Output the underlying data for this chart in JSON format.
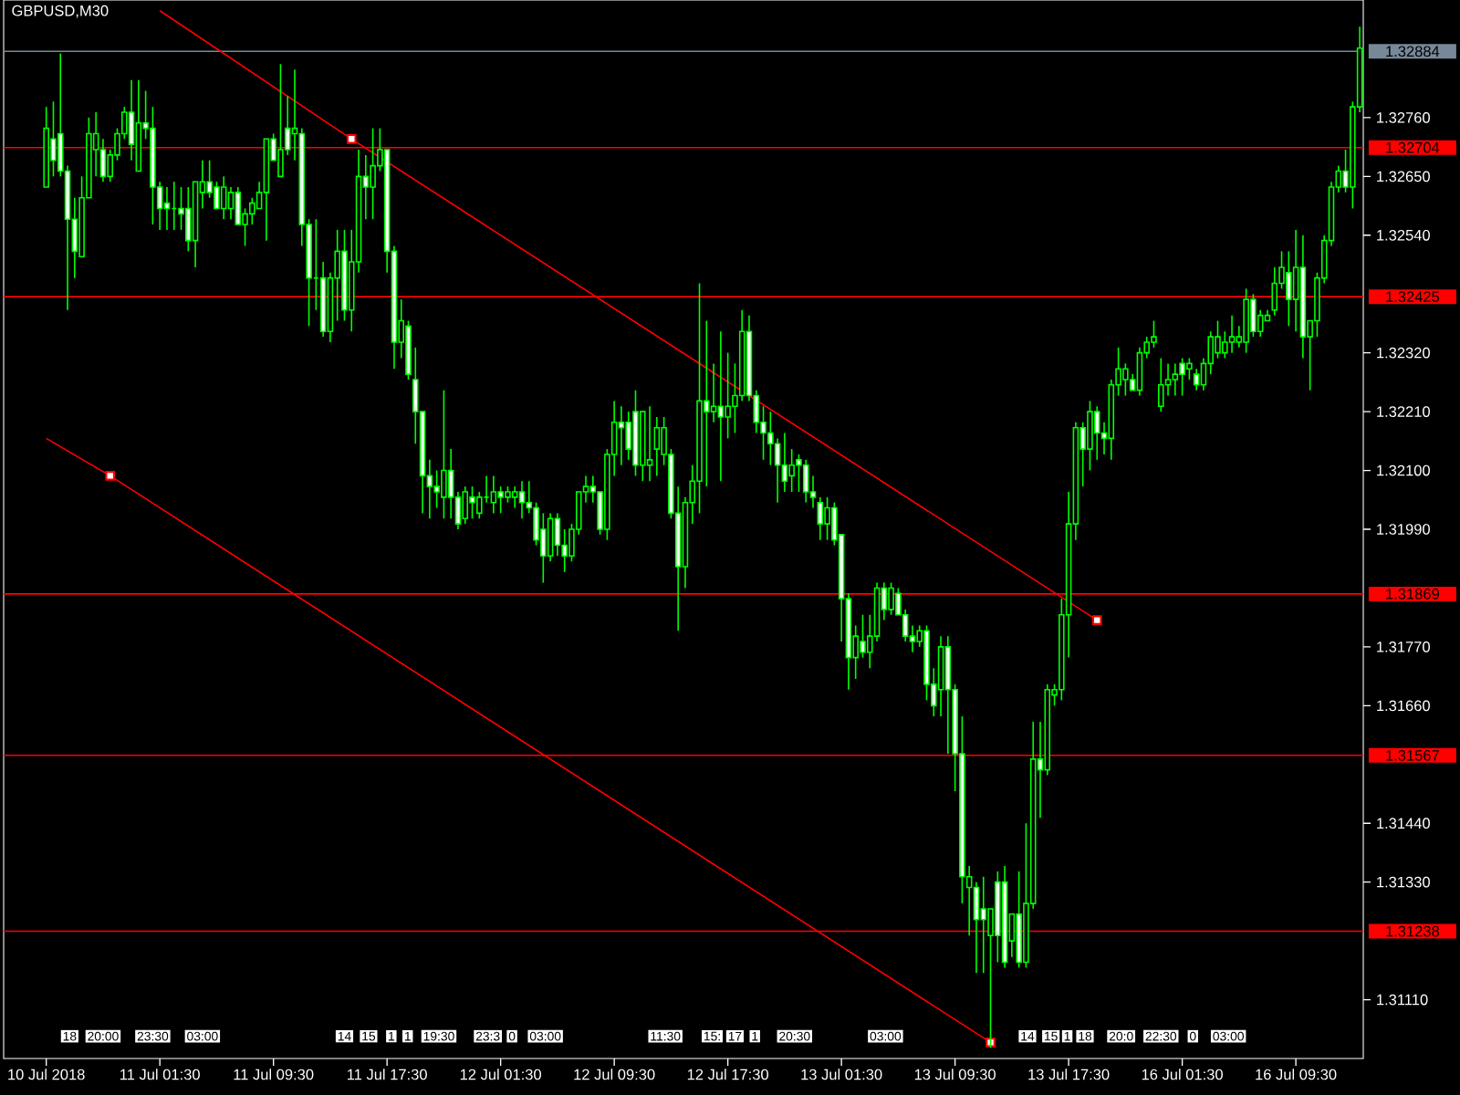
{
  "chart_data": {
    "type": "candlestick",
    "title": "GBPUSD,M30",
    "color": "#00ff00",
    "categories": [
      "10 Jul 2018",
      null,
      null,
      null,
      null,
      null,
      null,
      null,
      null,
      null,
      null,
      null,
      null,
      null,
      null,
      null,
      "11 Jul 01:30",
      null,
      null,
      null,
      null,
      null,
      null,
      null,
      null,
      null,
      null,
      null,
      null,
      null,
      null,
      null,
      "11 Jul 09:30",
      null,
      null,
      null,
      null,
      null,
      null,
      null,
      null,
      null,
      null,
      null,
      null,
      null,
      null,
      null,
      "11 Jul 17:30",
      null,
      null,
      null,
      null,
      null,
      null,
      null,
      null,
      null,
      null,
      null,
      null,
      null,
      null,
      null,
      "12 Jul 01:30",
      null,
      null,
      null,
      null,
      null,
      null,
      null,
      null,
      null,
      null,
      null,
      null,
      null,
      null,
      null,
      "12 Jul 09:30",
      null,
      null,
      null,
      null,
      null,
      null,
      null,
      null,
      null,
      null,
      null,
      null,
      null,
      null,
      null,
      "12 Jul 17:30",
      null,
      null,
      null,
      null,
      null,
      null,
      null,
      null,
      null,
      null,
      null,
      null,
      null,
      null,
      null,
      "13 Jul 01:30",
      null,
      null,
      null,
      null,
      null,
      null,
      null,
      null,
      null,
      null,
      null,
      null,
      null,
      null,
      null,
      "13 Jul 09:30",
      null,
      null,
      null,
      null,
      null,
      null,
      null,
      null,
      null,
      null,
      null,
      null,
      null,
      null,
      null,
      "13 Jul 17:30",
      null,
      null,
      null,
      null,
      null,
      null,
      null,
      null,
      null,
      null,
      null,
      null,
      null,
      null,
      null,
      "16 Jul 01:30",
      null,
      null,
      null,
      null,
      null,
      null,
      null,
      null,
      null,
      null,
      null,
      null,
      null,
      null,
      null,
      "16 Jul 09:30",
      null,
      null,
      null,
      null,
      null,
      null,
      null,
      null,
      null
    ],
    "ohlc": [
      [
        1.3263,
        1.3278,
        1.3263,
        1.3274
      ],
      [
        1.3272,
        1.3279,
        1.3265,
        1.3268
      ],
      [
        1.3273,
        1.3288,
        1.3265,
        1.3266
      ],
      [
        1.3266,
        1.3267,
        1.324,
        1.3257
      ],
      [
        1.3257,
        1.3261,
        1.3246,
        1.3251
      ],
      [
        1.325,
        1.3265,
        1.325,
        1.3261
      ],
      [
        1.3261,
        1.3276,
        1.3261,
        1.3273
      ],
      [
        1.327,
        1.3277,
        1.3265,
        1.3273
      ],
      [
        1.327,
        1.3272,
        1.3264,
        1.3265
      ],
      [
        1.3265,
        1.327,
        1.3264,
        1.3269
      ],
      [
        1.3269,
        1.3274,
        1.3268,
        1.3273
      ],
      [
        1.3273,
        1.3278,
        1.3272,
        1.3277
      ],
      [
        1.3277,
        1.3283,
        1.3268,
        1.3271
      ],
      [
        1.3266,
        1.3283,
        1.3266,
        1.3275
      ],
      [
        1.3275,
        1.3281,
        1.3272,
        1.3274
      ],
      [
        1.3274,
        1.3278,
        1.3256,
        1.3263
      ],
      [
        1.3263,
        1.3264,
        1.3255,
        1.3259
      ],
      [
        1.326,
        1.3263,
        1.3255,
        1.3259
      ],
      [
        1.3259,
        1.3264,
        1.3255,
        1.3259
      ],
      [
        1.3259,
        1.3263,
        1.3255,
        1.3258
      ],
      [
        1.3259,
        1.3263,
        1.3251,
        1.3253
      ],
      [
        1.3253,
        1.3264,
        1.3248,
        1.3264
      ],
      [
        1.3262,
        1.3268,
        1.3259,
        1.3264
      ],
      [
        1.3264,
        1.3268,
        1.3261,
        1.3262
      ],
      [
        1.3263,
        1.3264,
        1.3259,
        1.3259
      ],
      [
        1.3259,
        1.3265,
        1.3257,
        1.3263
      ],
      [
        1.3259,
        1.3263,
        1.3257,
        1.3262
      ],
      [
        1.3262,
        1.3263,
        1.3256,
        1.3256
      ],
      [
        1.3256,
        1.3259,
        1.3252,
        1.3258
      ],
      [
        1.3258,
        1.3261,
        1.3256,
        1.326
      ],
      [
        1.3259,
        1.3264,
        1.3259,
        1.3262
      ],
      [
        1.3262,
        1.3272,
        1.3253,
        1.3272
      ],
      [
        1.3272,
        1.3273,
        1.3268,
        1.3268
      ],
      [
        1.3265,
        1.3286,
        1.3265,
        1.327
      ],
      [
        1.3274,
        1.328,
        1.3269,
        1.327
      ],
      [
        1.3273,
        1.3285,
        1.3268,
        1.3274
      ],
      [
        1.3273,
        1.3274,
        1.3252,
        1.3256
      ],
      [
        1.3256,
        1.3257,
        1.3237,
        1.3246
      ],
      [
        1.3246,
        1.3257,
        1.324,
        1.3246
      ],
      [
        1.3246,
        1.3249,
        1.3235,
        1.3236
      ],
      [
        1.3236,
        1.3247,
        1.3234,
        1.3246
      ],
      [
        1.3246,
        1.3255,
        1.3238,
        1.3251
      ],
      [
        1.3251,
        1.3255,
        1.3238,
        1.324
      ],
      [
        1.324,
        1.3255,
        1.3236,
        1.3249
      ],
      [
        1.3249,
        1.327,
        1.3247,
        1.3265
      ],
      [
        1.3265,
        1.3269,
        1.3257,
        1.3263
      ],
      [
        1.3263,
        1.3274,
        1.3257,
        1.3267
      ],
      [
        1.3267,
        1.3274,
        1.3266,
        1.327
      ],
      [
        1.327,
        1.327,
        1.3247,
        1.3251
      ],
      [
        1.3251,
        1.3252,
        1.3229,
        1.3234
      ],
      [
        1.3234,
        1.3242,
        1.3231,
        1.3238
      ],
      [
        1.3237,
        1.3238,
        1.3227,
        1.3228
      ],
      [
        1.3227,
        1.3233,
        1.3215,
        1.3221
      ],
      [
        1.3221,
        1.3221,
        1.3202,
        1.3209
      ],
      [
        1.3209,
        1.3212,
        1.3201,
        1.3207
      ],
      [
        1.3207,
        1.321,
        1.3203,
        1.3206
      ],
      [
        1.3205,
        1.3225,
        1.3201,
        1.321
      ],
      [
        1.321,
        1.3214,
        1.3201,
        1.3205
      ],
      [
        1.3205,
        1.3206,
        1.3199,
        1.32
      ],
      [
        1.3201,
        1.3207,
        1.32,
        1.3206
      ],
      [
        1.3205,
        1.3207,
        1.3201,
        1.3204
      ],
      [
        1.3202,
        1.3206,
        1.3201,
        1.3205
      ],
      [
        1.3205,
        1.3209,
        1.3204,
        1.3205
      ],
      [
        1.3204,
        1.3209,
        1.3202,
        1.3206
      ],
      [
        1.3206,
        1.3207,
        1.3202,
        1.3205
      ],
      [
        1.3205,
        1.3207,
        1.3204,
        1.3206
      ],
      [
        1.3205,
        1.3207,
        1.3203,
        1.3206
      ],
      [
        1.3206,
        1.3208,
        1.3201,
        1.3204
      ],
      [
        1.3204,
        1.3208,
        1.3202,
        1.3203
      ],
      [
        1.3203,
        1.3204,
        1.3196,
        1.3197
      ],
      [
        1.3199,
        1.3202,
        1.3189,
        1.3194
      ],
      [
        1.3194,
        1.3202,
        1.3193,
        1.3201
      ],
      [
        1.3201,
        1.3202,
        1.3194,
        1.3196
      ],
      [
        1.3196,
        1.3199,
        1.3191,
        1.3194
      ],
      [
        1.3194,
        1.32,
        1.3193,
        1.3199
      ],
      [
        1.3199,
        1.3206,
        1.3198,
        1.3206
      ],
      [
        1.3206,
        1.3209,
        1.3204,
        1.3207
      ],
      [
        1.3207,
        1.3209,
        1.3204,
        1.3206
      ],
      [
        1.3206,
        1.3206,
        1.3198,
        1.3199
      ],
      [
        1.3199,
        1.3214,
        1.3197,
        1.3213
      ],
      [
        1.3213,
        1.3223,
        1.3209,
        1.3219
      ],
      [
        1.3219,
        1.3222,
        1.3211,
        1.3218
      ],
      [
        1.3219,
        1.3221,
        1.3212,
        1.3214
      ],
      [
        1.3221,
        1.3225,
        1.3209,
        1.3211
      ],
      [
        1.3211,
        1.3221,
        1.3208,
        1.3221
      ],
      [
        1.3211,
        1.3222,
        1.3208,
        1.3212
      ],
      [
        1.3214,
        1.322,
        1.3209,
        1.3218
      ],
      [
        1.3213,
        1.322,
        1.3211,
        1.3218
      ],
      [
        1.3213,
        1.3214,
        1.3201,
        1.3202
      ],
      [
        1.3202,
        1.3207,
        1.318,
        1.3192
      ],
      [
        1.3192,
        1.3205,
        1.3188,
        1.3204
      ],
      [
        1.3204,
        1.3211,
        1.32,
        1.3208
      ],
      [
        1.3208,
        1.3245,
        1.3202,
        1.3223
      ],
      [
        1.3223,
        1.3238,
        1.3207,
        1.3221
      ],
      [
        1.3221,
        1.323,
        1.3219,
        1.3222
      ],
      [
        1.3222,
        1.3236,
        1.3208,
        1.322
      ],
      [
        1.322,
        1.3232,
        1.3216,
        1.3222
      ],
      [
        1.3222,
        1.323,
        1.3217,
        1.3224
      ],
      [
        1.3224,
        1.324,
        1.3223,
        1.3236
      ],
      [
        1.3236,
        1.3239,
        1.3223,
        1.3224
      ],
      [
        1.3224,
        1.3225,
        1.3217,
        1.3219
      ],
      [
        1.3219,
        1.3222,
        1.3212,
        1.3217
      ],
      [
        1.3217,
        1.3221,
        1.3211,
        1.3215
      ],
      [
        1.3215,
        1.3216,
        1.3204,
        1.3211
      ],
      [
        1.3211,
        1.3217,
        1.3206,
        1.3208
      ],
      [
        1.3209,
        1.3214,
        1.3206,
        1.3211
      ],
      [
        1.3212,
        1.3213,
        1.3206,
        1.3211
      ],
      [
        1.3211,
        1.3212,
        1.3204,
        1.3206
      ],
      [
        1.3206,
        1.3209,
        1.3203,
        1.3205
      ],
      [
        1.3204,
        1.3205,
        1.3197,
        1.32
      ],
      [
        1.32,
        1.3205,
        1.3197,
        1.3203
      ],
      [
        1.3203,
        1.3204,
        1.3196,
        1.3197
      ],
      [
        1.3198,
        1.3198,
        1.3178,
        1.3186
      ],
      [
        1.3186,
        1.3187,
        1.3169,
        1.3175
      ],
      [
        1.3175,
        1.3181,
        1.3171,
        1.3179
      ],
      [
        1.3178,
        1.3183,
        1.3175,
        1.3176
      ],
      [
        1.3176,
        1.3183,
        1.3173,
        1.3179
      ],
      [
        1.3179,
        1.3189,
        1.3178,
        1.3188
      ],
      [
        1.3188,
        1.3189,
        1.3182,
        1.3184
      ],
      [
        1.3184,
        1.3189,
        1.3183,
        1.3188
      ],
      [
        1.3187,
        1.3188,
        1.3183,
        1.3183
      ],
      [
        1.3183,
        1.3184,
        1.3178,
        1.3179
      ],
      [
        1.3179,
        1.3181,
        1.3176,
        1.3178
      ],
      [
        1.3178,
        1.3181,
        1.3177,
        1.318
      ],
      [
        1.318,
        1.3181,
        1.3167,
        1.317
      ],
      [
        1.317,
        1.3173,
        1.3164,
        1.3166
      ],
      [
        1.3169,
        1.3179,
        1.3164,
        1.3177
      ],
      [
        1.3177,
        1.3179,
        1.3157,
        1.3169
      ],
      [
        1.3169,
        1.317,
        1.315,
        1.3157
      ],
      [
        1.3157,
        1.3164,
        1.3129,
        1.3134
      ],
      [
        1.3132,
        1.3136,
        1.3123,
        1.3134
      ],
      [
        1.3132,
        1.3133,
        1.3116,
        1.3126
      ],
      [
        1.3128,
        1.3134,
        1.3116,
        1.3126
      ],
      [
        1.3123,
        1.3128,
        1.3102,
        1.3128
      ],
      [
        1.3133,
        1.3135,
        1.3118,
        1.3123
      ],
      [
        1.3133,
        1.3136,
        1.3117,
        1.3118
      ],
      [
        1.3122,
        1.3127,
        1.3119,
        1.3127
      ],
      [
        1.3127,
        1.3135,
        1.3117,
        1.3118
      ],
      [
        1.3118,
        1.3144,
        1.3117,
        1.3129
      ],
      [
        1.3129,
        1.3163,
        1.3128,
        1.3156
      ],
      [
        1.3156,
        1.3163,
        1.3145,
        1.3154
      ],
      [
        1.3154,
        1.317,
        1.3153,
        1.3169
      ],
      [
        1.3168,
        1.317,
        1.3166,
        1.3169
      ],
      [
        1.3169,
        1.3186,
        1.3167,
        1.3183
      ],
      [
        1.3183,
        1.3206,
        1.3175,
        1.32
      ],
      [
        1.32,
        1.3219,
        1.3197,
        1.3218
      ],
      [
        1.3218,
        1.3219,
        1.3207,
        1.3214
      ],
      [
        1.3214,
        1.3223,
        1.321,
        1.3221
      ],
      [
        1.3221,
        1.3222,
        1.3212,
        1.3217
      ],
      [
        1.3217,
        1.3219,
        1.3213,
        1.3216
      ],
      [
        1.3216,
        1.3227,
        1.3212,
        1.3226
      ],
      [
        1.3226,
        1.3233,
        1.3224,
        1.3229
      ],
      [
        1.3227,
        1.323,
        1.3224,
        1.3229
      ],
      [
        1.3227,
        1.3228,
        1.3225,
        1.3225
      ],
      [
        1.3225,
        1.3233,
        1.3224,
        1.3232
      ],
      [
        1.3232,
        1.3235,
        1.3231,
        1.3234
      ],
      [
        1.3234,
        1.3238,
        1.3233,
        1.3235
      ],
      [
        1.3222,
        1.3231,
        1.3221,
        1.3226
      ],
      [
        1.3226,
        1.323,
        1.3224,
        1.3227
      ],
      [
        1.3227,
        1.323,
        1.3224,
        1.3228
      ],
      [
        1.323,
        1.3231,
        1.3224,
        1.3228
      ],
      [
        1.3229,
        1.3231,
        1.3227,
        1.323
      ],
      [
        1.3228,
        1.3229,
        1.3225,
        1.3226
      ],
      [
        1.3226,
        1.3231,
        1.3225,
        1.323
      ],
      [
        1.323,
        1.3236,
        1.3228,
        1.3235
      ],
      [
        1.3232,
        1.3238,
        1.3231,
        1.3235
      ],
      [
        1.3232,
        1.3236,
        1.3231,
        1.3234
      ],
      [
        1.3234,
        1.3239,
        1.3232,
        1.3235
      ],
      [
        1.3234,
        1.3237,
        1.3233,
        1.3235
      ],
      [
        1.3234,
        1.3244,
        1.3232,
        1.3242
      ],
      [
        1.3242,
        1.3243,
        1.3235,
        1.3236
      ],
      [
        1.3236,
        1.324,
        1.3235,
        1.3239
      ],
      [
        1.3238,
        1.324,
        1.3238,
        1.3239
      ],
      [
        1.324,
        1.3248,
        1.3239,
        1.3245
      ],
      [
        1.3245,
        1.3251,
        1.3244,
        1.3248
      ],
      [
        1.3247,
        1.3251,
        1.3237,
        1.3242
      ],
      [
        1.3242,
        1.3255,
        1.3236,
        1.3248
      ],
      [
        1.3248,
        1.3254,
        1.3231,
        1.3235
      ],
      [
        1.3235,
        1.3238,
        1.3225,
        1.3238
      ],
      [
        1.3238,
        1.3247,
        1.3235,
        1.3246
      ],
      [
        1.3246,
        1.3254,
        1.3245,
        1.3253
      ],
      [
        1.3253,
        1.3264,
        1.3252,
        1.3263
      ],
      [
        1.3263,
        1.3267,
        1.3262,
        1.3266
      ],
      [
        1.3266,
        1.327,
        1.3262,
        1.3263
      ],
      [
        1.3263,
        1.3279,
        1.3259,
        1.3278
      ],
      [
        1.3278,
        1.3293,
        1.3277,
        1.3289
      ]
    ],
    "series": [
      {
        "type": "line",
        "color": "#ff0000",
        "values": [
          null,
          null,
          null,
          null,
          null,
          null,
          null,
          null,
          null,
          null,
          null,
          null,
          null,
          null,
          null,
          null,
          1.3296,
          null,
          null,
          null,
          null,
          null,
          null,
          null,
          null,
          null,
          null,
          null,
          null,
          null,
          null,
          null,
          null,
          null,
          null,
          null,
          null,
          null,
          null,
          null,
          null,
          null,
          null,
          1.3272,
          null,
          null,
          null,
          null,
          null,
          null,
          null,
          null,
          null,
          null,
          null,
          null,
          null,
          null,
          null,
          null,
          null,
          null,
          null,
          null,
          null,
          null,
          null,
          null,
          null,
          null,
          null,
          null,
          null,
          null,
          null,
          null,
          null,
          null,
          null,
          null,
          null,
          null,
          null,
          null,
          null,
          null,
          null,
          null,
          null,
          null,
          null,
          null,
          null,
          null,
          null,
          null,
          null,
          null,
          null,
          null,
          null,
          null,
          null,
          null,
          null,
          null,
          null,
          null,
          null,
          null,
          null,
          null,
          null,
          null,
          null,
          null,
          null,
          null,
          null,
          null,
          null,
          null,
          null,
          null,
          null,
          null,
          null,
          null,
          null,
          null,
          null,
          null,
          null,
          null,
          null,
          null,
          null,
          null,
          null,
          null,
          null,
          null,
          null,
          null,
          null,
          null,
          null,
          null,
          1.3182,
          null,
          null,
          null,
          null,
          null,
          null,
          null,
          null,
          null,
          null,
          null,
          null,
          null,
          null,
          null,
          null,
          null,
          null,
          null,
          null,
          null,
          null,
          null,
          null,
          null,
          null,
          null,
          null,
          null,
          null,
          null,
          null,
          null,
          null,
          null,
          null,
          null
        ]
      },
      {
        "type": "line",
        "color": "#ff0000",
        "values": [
          1.3216,
          null,
          null,
          null,
          null,
          null,
          null,
          null,
          null,
          1.3209,
          null,
          null,
          null,
          null,
          null,
          null,
          null,
          null,
          null,
          null,
          null,
          null,
          null,
          null,
          null,
          null,
          null,
          null,
          null,
          null,
          null,
          null,
          null,
          null,
          null,
          null,
          null,
          null,
          null,
          null,
          null,
          null,
          null,
          null,
          null,
          null,
          null,
          null,
          null,
          null,
          null,
          null,
          null,
          null,
          null,
          null,
          null,
          null,
          null,
          null,
          null,
          null,
          null,
          null,
          null,
          null,
          null,
          null,
          null,
          null,
          null,
          null,
          null,
          null,
          null,
          null,
          null,
          null,
          null,
          null,
          null,
          null,
          null,
          null,
          null,
          null,
          null,
          null,
          null,
          null,
          null,
          null,
          null,
          null,
          null,
          null,
          null,
          null,
          null,
          null,
          null,
          null,
          null,
          null,
          null,
          null,
          null,
          null,
          null,
          null,
          null,
          null,
          null,
          null,
          null,
          null,
          null,
          null,
          null,
          null,
          null,
          null,
          null,
          null,
          null,
          null,
          null,
          null,
          null,
          null,
          null,
          null,
          null,
          1.3103,
          null,
          null,
          null,
          null,
          null,
          null,
          null,
          null,
          null,
          null,
          null,
          null,
          null,
          null,
          null,
          null,
          null,
          null,
          null,
          null,
          null,
          null,
          null,
          null,
          null,
          null,
          null,
          null,
          null,
          null,
          null,
          null,
          null,
          null,
          null,
          null,
          null,
          null,
          null,
          null,
          null,
          null,
          null,
          null,
          null,
          null,
          null,
          null,
          null,
          null,
          null,
          null
        ]
      },
      {
        "type": "scatter",
        "marker": "square",
        "color": "#ff0000",
        "values": [
          null,
          null,
          null,
          null,
          null,
          null,
          null,
          null,
          null,
          1.3209,
          null,
          null,
          null,
          null,
          null,
          null,
          null,
          null,
          null,
          null,
          null,
          null,
          null,
          null,
          null,
          null,
          null,
          null,
          null,
          null,
          null,
          null,
          null,
          null,
          null,
          null,
          null,
          null,
          null,
          null,
          null,
          null,
          null,
          1.3272,
          null,
          null,
          null,
          null,
          null,
          null,
          null,
          null,
          null,
          null,
          null,
          null,
          null,
          null,
          null,
          null,
          null,
          null,
          null,
          null,
          null,
          null,
          null,
          null,
          null,
          null,
          null,
          null,
          null,
          null,
          null,
          null,
          null,
          null,
          null,
          null,
          null,
          null,
          null,
          null,
          null,
          null,
          null,
          null,
          null,
          null,
          null,
          null,
          null,
          null,
          null,
          null,
          null,
          null,
          null,
          null,
          null,
          null,
          null,
          null,
          null,
          null,
          null,
          null,
          null,
          null,
          null,
          null,
          null,
          null,
          null,
          null,
          null,
          null,
          null,
          null,
          null,
          null,
          null,
          null,
          null,
          null,
          null,
          null,
          null,
          null,
          null,
          null,
          null,
          1.3103,
          null,
          null,
          null,
          null,
          null,
          null,
          null,
          null,
          null,
          null,
          null,
          null,
          null,
          null,
          1.3182,
          null,
          null,
          null,
          null,
          null,
          null,
          null,
          null,
          null,
          null,
          null,
          null,
          null,
          null,
          null,
          null,
          null,
          null,
          null,
          null,
          null,
          null,
          null,
          null,
          null,
          null,
          null,
          null,
          null,
          null,
          null,
          null,
          null,
          null,
          null,
          null,
          null
        ]
      }
    ],
    "ylim": [
      1.31,
      1.3298
    ],
    "yticks": [
      {
        "value": 1.3111,
        "label": "1.31110"
      },
      {
        "value": 1.3133,
        "label": "1.31330"
      },
      {
        "value": 1.3144,
        "label": "1.31440"
      },
      {
        "value": 1.3166,
        "label": "1.31660"
      },
      {
        "value": 1.3177,
        "label": "1.31770"
      },
      {
        "value": 1.3199,
        "label": "1.31990"
      },
      {
        "value": 1.321,
        "label": "1.32100"
      },
      {
        "value": 1.3221,
        "label": "1.32210"
      },
      {
        "value": 1.3232,
        "label": "1.32320"
      },
      {
        "value": 1.3254,
        "label": "1.32540"
      },
      {
        "value": 1.3265,
        "label": "1.32650"
      },
      {
        "value": 1.3276,
        "label": "1.32760"
      }
    ],
    "ref_lines": [
      {
        "axis": "y",
        "value": 1.32884,
        "label": "1.32884",
        "color": "#778899"
      },
      {
        "axis": "y",
        "value": 1.32704,
        "label": "1.32704",
        "color": "#ff0000"
      },
      {
        "axis": "y",
        "value": 1.32425,
        "label": "1.32425",
        "color": "#ff0000"
      },
      {
        "axis": "y",
        "value": 1.31869,
        "label": "1.31869",
        "color": "#ff0000"
      },
      {
        "axis": "y",
        "value": 1.31567,
        "label": "1.31567",
        "color": "#ff0000"
      },
      {
        "axis": "y",
        "value": 1.31238,
        "label": "1.31238",
        "color": "#ff0000"
      }
    ],
    "annotations": [
      "18",
      "20:00",
      "23:30",
      "03:00",
      "14",
      "15",
      "1",
      "1",
      "19:30",
      "23:3",
      "0",
      "03:00",
      "11:30",
      "15:",
      "17",
      "1",
      "20:30",
      "03:00",
      "14",
      "15",
      "1",
      "18",
      "20:0",
      "22:30",
      "0",
      "03:00"
    ]
  }
}
